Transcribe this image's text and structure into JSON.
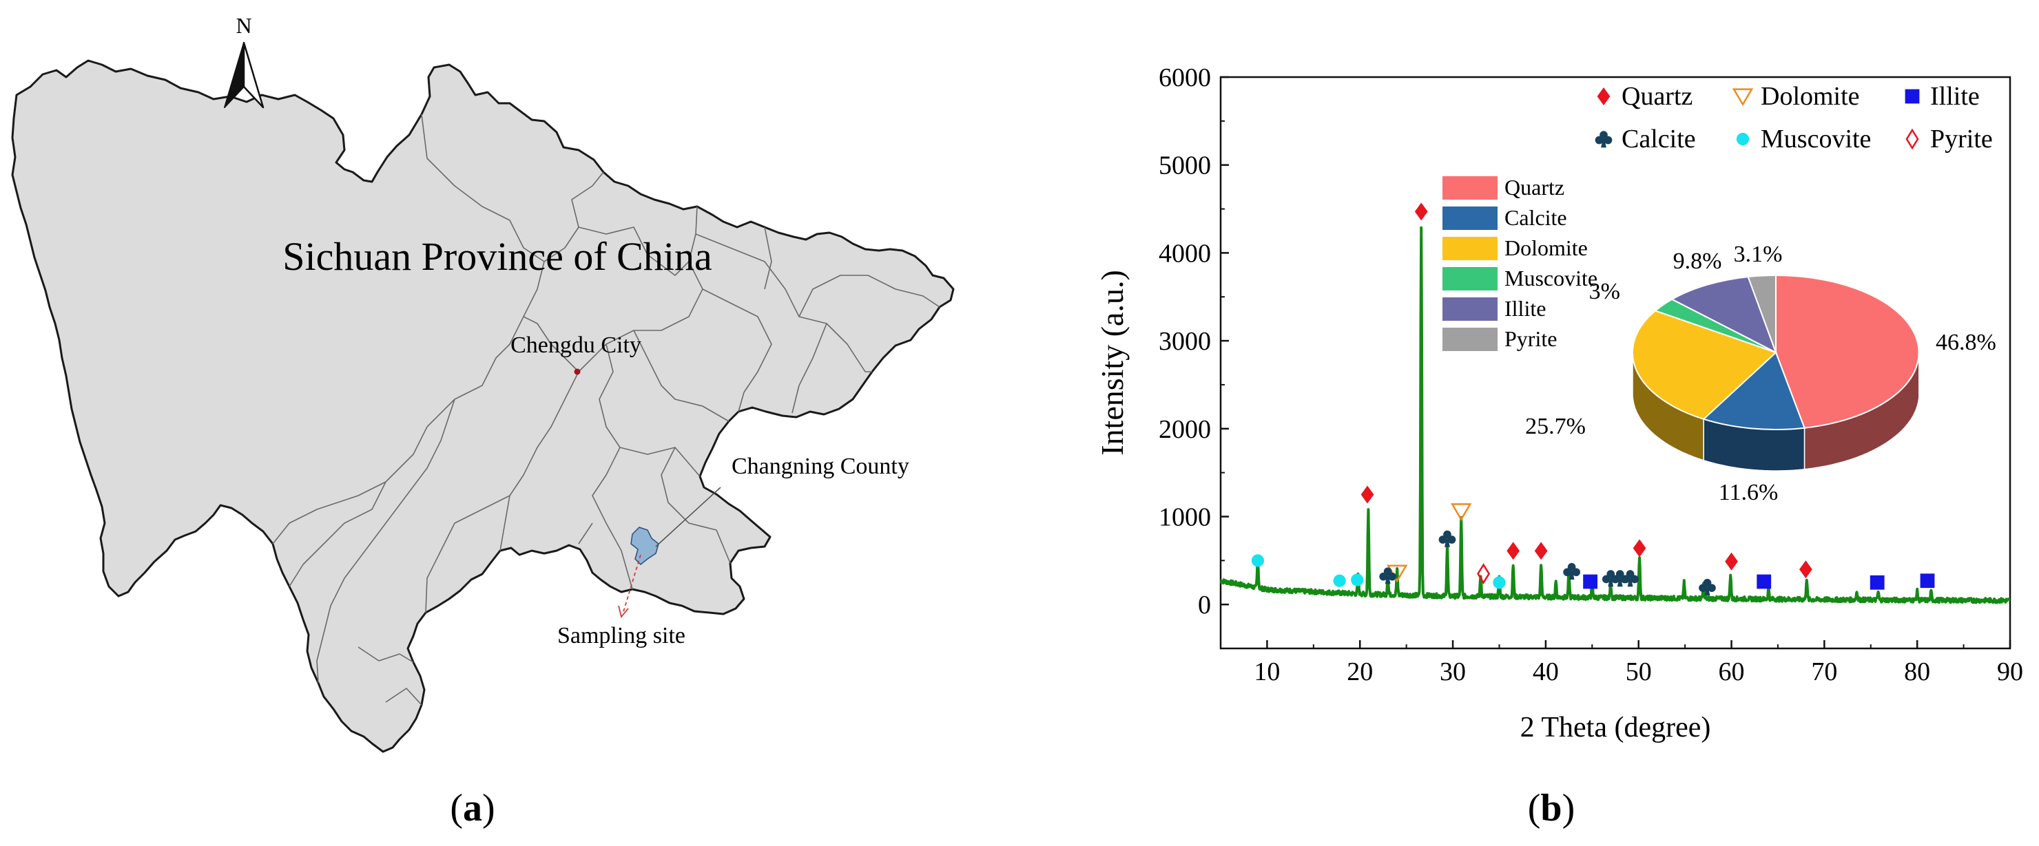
{
  "panel_a": {
    "label_open": "(",
    "label_letter": "a",
    "label_close": ")",
    "north_label": "N",
    "province_label": "Sichuan Province of China",
    "city_label": "Chengdu City",
    "county_label": "Changning County",
    "site_label": "Sampling site",
    "colors": {
      "land": "#dcdcdc",
      "border": "#1a1a1a",
      "inner_border": "#6a6a6a",
      "county": "#8fb4d6",
      "city_dot": "#a0141e",
      "site_arrow": "#d33a3a"
    }
  },
  "panel_b": {
    "label_open": "(",
    "label_letter": "b",
    "label_close": ")",
    "legend": [
      {
        "name": "Quartz",
        "marker": "diamond-filled",
        "color": "#e8141e"
      },
      {
        "name": "Dolomite",
        "marker": "triangle-down-open",
        "color": "#ef8a1e"
      },
      {
        "name": "Illite",
        "marker": "square-filled",
        "color": "#1414e6"
      },
      {
        "name": "Calcite",
        "marker": "club",
        "color": "#17425e"
      },
      {
        "name": "Muscovite",
        "marker": "circle-filled",
        "color": "#17e3ee"
      },
      {
        "name": "Pyrite",
        "marker": "diamond-open",
        "color": "#e8141e"
      }
    ]
  },
  "chart_data": [
    {
      "type": "line",
      "xlabel": "2 Theta (degree)",
      "ylabel": "Intensity (a.u.)",
      "xlim": [
        5,
        90
      ],
      "ylim": [
        -500,
        6000
      ],
      "xticks": [
        10,
        20,
        30,
        40,
        50,
        60,
        70,
        80,
        90
      ],
      "yticks": [
        0,
        1000,
        2000,
        3000,
        4000,
        5000,
        6000
      ],
      "grid": false,
      "legend_position": "top-right",
      "series_color": "#148a14",
      "baseline": [
        [
          5,
          270
        ],
        [
          10,
          170
        ],
        [
          20,
          120
        ],
        [
          30,
          95
        ],
        [
          40,
          85
        ],
        [
          50,
          75
        ],
        [
          60,
          65
        ],
        [
          70,
          55
        ],
        [
          80,
          50
        ],
        [
          90,
          45
        ]
      ],
      "peaks": [
        {
          "x": 9.0,
          "y": 330
        },
        {
          "x": 19.8,
          "y": 230
        },
        {
          "x": 20.9,
          "y": 960
        },
        {
          "x": 23.0,
          "y": 200
        },
        {
          "x": 24.0,
          "y": 280
        },
        {
          "x": 26.6,
          "y": 4200
        },
        {
          "x": 29.4,
          "y": 580
        },
        {
          "x": 30.9,
          "y": 880
        },
        {
          "x": 33.0,
          "y": 240
        },
        {
          "x": 35.0,
          "y": 230
        },
        {
          "x": 36.5,
          "y": 360
        },
        {
          "x": 39.5,
          "y": 380
        },
        {
          "x": 41.1,
          "y": 180
        },
        {
          "x": 42.5,
          "y": 280
        },
        {
          "x": 45.0,
          "y": 180
        },
        {
          "x": 47.0,
          "y": 150
        },
        {
          "x": 50.1,
          "y": 480
        },
        {
          "x": 54.9,
          "y": 180
        },
        {
          "x": 57.0,
          "y": 160
        },
        {
          "x": 59.9,
          "y": 280
        },
        {
          "x": 64.0,
          "y": 120
        },
        {
          "x": 68.1,
          "y": 240
        },
        {
          "x": 73.5,
          "y": 100
        },
        {
          "x": 75.8,
          "y": 90
        },
        {
          "x": 80.0,
          "y": 100
        },
        {
          "x": 81.5,
          "y": 90
        }
      ],
      "phase_markers": [
        {
          "phase": "Quartz",
          "x": 20.8,
          "y": 1250
        },
        {
          "phase": "Quartz",
          "x": 26.6,
          "y": 4470
        },
        {
          "phase": "Quartz",
          "x": 36.5,
          "y": 610
        },
        {
          "phase": "Quartz",
          "x": 39.5,
          "y": 610
        },
        {
          "phase": "Quartz",
          "x": 50.1,
          "y": 640
        },
        {
          "phase": "Quartz",
          "x": 60.0,
          "y": 490
        },
        {
          "phase": "Quartz",
          "x": 68.0,
          "y": 400
        },
        {
          "phase": "Dolomite",
          "x": 24.0,
          "y": 360
        },
        {
          "phase": "Dolomite",
          "x": 30.9,
          "y": 1060
        },
        {
          "phase": "Illite",
          "x": 44.8,
          "y": 260
        },
        {
          "phase": "Illite",
          "x": 63.5,
          "y": 260
        },
        {
          "phase": "Illite",
          "x": 75.7,
          "y": 250
        },
        {
          "phase": "Illite",
          "x": 81.1,
          "y": 270
        },
        {
          "phase": "Calcite",
          "x": 23.0,
          "y": 330
        },
        {
          "phase": "Calcite",
          "x": 29.4,
          "y": 750
        },
        {
          "phase": "Calcite",
          "x": 42.8,
          "y": 380
        },
        {
          "phase": "Calcite",
          "x": 47.0,
          "y": 300
        },
        {
          "phase": "Calcite",
          "x": 48.0,
          "y": 300
        },
        {
          "phase": "Calcite",
          "x": 49.1,
          "y": 300
        },
        {
          "phase": "Calcite",
          "x": 57.4,
          "y": 200
        },
        {
          "phase": "Muscovite",
          "x": 9.0,
          "y": 500
        },
        {
          "phase": "Muscovite",
          "x": 17.8,
          "y": 270
        },
        {
          "phase": "Muscovite",
          "x": 19.7,
          "y": 280
        },
        {
          "phase": "Muscovite",
          "x": 35.0,
          "y": 250
        },
        {
          "phase": "Pyrite",
          "x": 33.3,
          "y": 350
        }
      ]
    },
    {
      "type": "pie",
      "style": "3d",
      "legend_position": "left",
      "categories": [
        "Quartz",
        "Calcite",
        "Dolomite",
        "Muscovite",
        "Illite",
        "Pyrite"
      ],
      "values": [
        46.8,
        11.6,
        25.7,
        3,
        9.8,
        3.1
      ],
      "labels": [
        "46.8%",
        "11.6%",
        "25.7%",
        "3%",
        "9.8%",
        "3.1%"
      ],
      "colors": [
        "#fa7070",
        "#2b6aa6",
        "#fbc21a",
        "#38c77a",
        "#6c6aa6",
        "#a0a0a0"
      ]
    }
  ]
}
